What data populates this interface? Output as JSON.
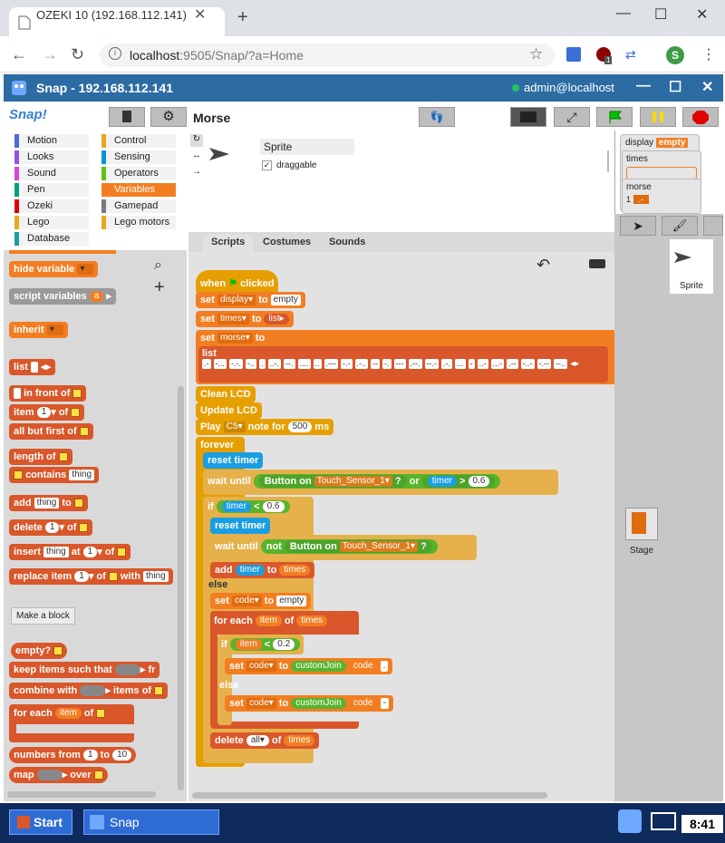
{
  "browser": {
    "tab_title": "OZEKI 10 (192.168.112.141)",
    "url_host": "localhost",
    "url_rest": ":9505/Snap/?a=Home",
    "profile_initial": "S",
    "ext_badge": "1"
  },
  "snap": {
    "window_title": "Snap - 192.168.112.141",
    "user": "admin@localhost",
    "logo": "Snap!",
    "sprite_name": "Morse"
  },
  "categories": [
    {
      "label": "Motion",
      "color": "#4a6cd4"
    },
    {
      "label": "Control",
      "color": "#e6a822"
    },
    {
      "label": "Looks",
      "color": "#8f56e3"
    },
    {
      "label": "Sensing",
      "color": "#0494dc"
    },
    {
      "label": "Sound",
      "color": "#cf4ad9"
    },
    {
      "label": "Operators",
      "color": "#62c213"
    },
    {
      "label": "Pen",
      "color": "#00a178"
    },
    {
      "label": "Variables",
      "color": "#f37e22"
    },
    {
      "label": "Ozeki",
      "color": "#e00000"
    },
    {
      "label": "Gamepad",
      "color": "#7a7a7a"
    },
    {
      "label": "Lego",
      "color": "#e6a822"
    },
    {
      "label": "Lego motors",
      "color": "#e6a822"
    },
    {
      "label": "Database",
      "color": "#1a9e9e"
    }
  ],
  "palette": {
    "hide_variable": "hide variable",
    "script_variables": "script variables",
    "script_var_a": "a",
    "inherit": "inherit",
    "list": "list",
    "in_front_of": "in front of",
    "item": "item",
    "item_n": "1",
    "of": "of",
    "all_but_first": "all but first of",
    "length_of": "length of",
    "contains": "contains",
    "thing": "thing",
    "add": "add",
    "to": "to",
    "delete": "delete",
    "delete_n": "1",
    "insert": "insert",
    "at": "at",
    "replace_item": "replace item",
    "with": "with",
    "make_block": "Make a block",
    "empty_q": "empty?",
    "keep_items": "keep items such that",
    "from_cut": "fr",
    "combine_with": "combine with",
    "items_of": "items of",
    "for_each": "for each",
    "for_each_item": "item",
    "numbers_from": "numbers from",
    "num_from": "1",
    "num_to": "10",
    "map": "map",
    "over": "over"
  },
  "sprite_panel": {
    "name": "Sprite",
    "draggable": "draggable"
  },
  "tabs": [
    "Scripts",
    "Costumes",
    "Sounds"
  ],
  "stage_vars": {
    "display_label": "display",
    "display_value": "empty",
    "times_label": "times",
    "morse_label": "morse",
    "morse_index": "1",
    "morse_value": ".-"
  },
  "corral": {
    "sprite": "Sprite",
    "stage": "Stage"
  },
  "script": {
    "when": "when",
    "clicked": "clicked",
    "set": "set",
    "to": "to",
    "display": "display",
    "empty": "empty",
    "times": "times",
    "list_kw": "list",
    "morse": "morse",
    "morse_codes": [
      ".-",
      "-...",
      "-.-.",
      "-..",
      ".",
      "..-.",
      "--.",
      "....",
      "..",
      ".---",
      "-.-",
      ".-..",
      "--",
      "-.",
      "---",
      ".--.",
      "--.-",
      ".-.",
      "...",
      "-",
      "..-",
      "...-",
      ".--",
      "-..-",
      "-.--",
      "--.."
    ],
    "clean_lcd": "Clean LCD",
    "update_lcd": "Update LCD",
    "play": "Play",
    "note": "C5",
    "note_for": "note for",
    "ms_value": "500",
    "ms": "ms",
    "forever": "forever",
    "reset_timer": "reset timer",
    "wait_until": "wait until",
    "button_on": "Button on",
    "sensor": "Touch_Sensor_1",
    "q": "?",
    "or": "or",
    "timer": "timer",
    "gt": ">",
    "lt": "<",
    "v06": "0.6",
    "if": "if",
    "not": "not",
    "add": "add",
    "else": "else",
    "code": "code",
    "for_each": "for each",
    "item": "item",
    "of": "of",
    "v02": "0.2",
    "custom_join": "customJoin",
    "dot": ".",
    "dash": "-",
    "delete": "delete",
    "all": "all"
  },
  "taskbar": {
    "start": "Start",
    "app": "Snap",
    "clock": "8:41"
  }
}
